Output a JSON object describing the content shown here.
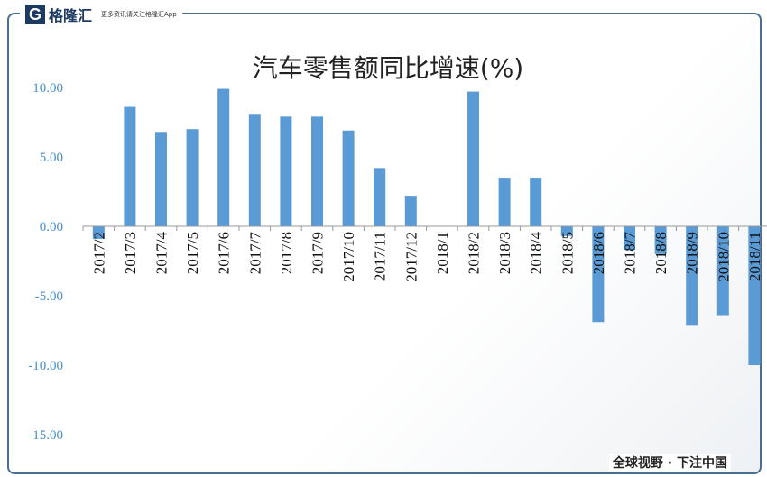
{
  "brand": {
    "logo_text": "格隆汇",
    "slogan": "更多资讯请关注格隆汇App"
  },
  "footer": "全球视野 · 下注中国",
  "colors": {
    "bar": "#5b9bd5",
    "axis_label": "#4a8ec9"
  },
  "chart_data": {
    "type": "bar",
    "title": "汽车零售额同比增速(%)",
    "xlabel": "",
    "ylabel": "",
    "ylim": [
      -15,
      10
    ],
    "yticks": [
      10,
      5,
      0,
      -5,
      -10,
      -15
    ],
    "ytick_labels": [
      "10.00",
      "5.00",
      "0.00",
      "-5.00",
      "-10.00",
      "-15.00"
    ],
    "categories": [
      "2017/2",
      "2017/3",
      "2017/4",
      "2017/5",
      "2017/6",
      "2017/7",
      "2017/8",
      "2017/9",
      "2017/10",
      "2017/11",
      "2017/12",
      "2018/1",
      "2018/2",
      "2018/3",
      "2018/4",
      "2018/5",
      "2018/6",
      "2018/7",
      "2018/8",
      "2018/9",
      "2018/10",
      "2018/11"
    ],
    "values": [
      -0.9,
      8.6,
      6.8,
      7.0,
      9.9,
      8.1,
      7.9,
      7.9,
      6.9,
      4.2,
      2.2,
      0,
      9.7,
      3.5,
      3.5,
      -0.7,
      -6.9,
      -1.7,
      -2.0,
      -7.1,
      -6.4,
      -10.0
    ],
    "grid": false,
    "legend": "none"
  }
}
